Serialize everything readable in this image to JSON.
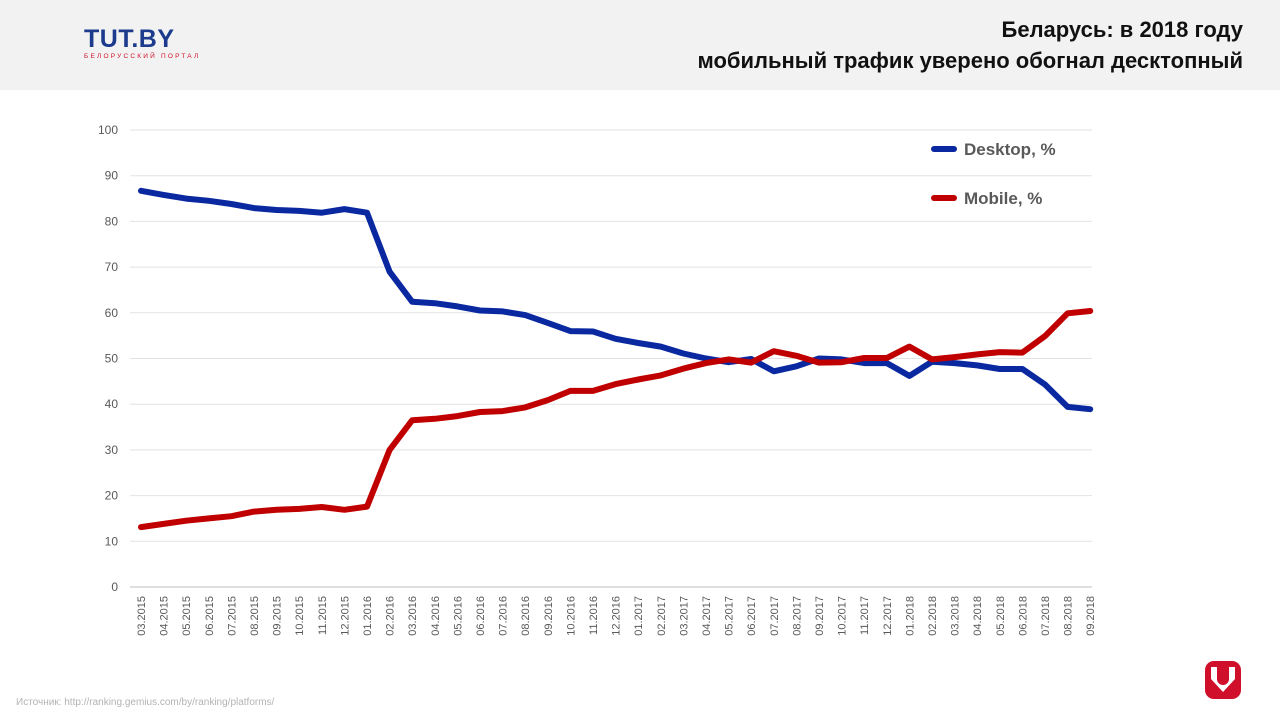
{
  "header": {
    "logo_text": "TUT.BY",
    "logo_subtitle": "БЕЛОРУССКИЙ ПОРТАЛ",
    "title_line1": "Беларусь: в 2018 году",
    "title_line2": "мобильный трафик уверено обогнал десктопный"
  },
  "footer": {
    "source": "Источник: http://ranking.gemius.com/by/ranking/platforms/"
  },
  "colors": {
    "desktop": "#0a28a0",
    "mobile": "#c00000",
    "brand_red": "#d0102a",
    "brand_blue": "#1c3b8c"
  },
  "chart_data": {
    "type": "line",
    "title": "",
    "xlabel": "",
    "ylabel": "",
    "ylim": [
      0,
      100
    ],
    "yticks": [
      0,
      10,
      20,
      30,
      40,
      50,
      60,
      70,
      80,
      90,
      100
    ],
    "grid": true,
    "legend_position": "top-right",
    "x": [
      "03.2015",
      "04.2015",
      "05.2015",
      "06.2015",
      "07.2015",
      "08.2015",
      "09.2015",
      "10.2015",
      "11.2015",
      "12.2015",
      "01.2016",
      "02.2016",
      "03.2016",
      "04.2016",
      "05.2016",
      "06.2016",
      "07.2016",
      "08.2016",
      "09.2016",
      "10.2016",
      "11.2016",
      "12.2016",
      "01.2017",
      "02.2017",
      "03.2017",
      "04.2017",
      "05.2017",
      "06.2017",
      "07.2017",
      "08.2017",
      "09.2017",
      "10.2017",
      "11.2017",
      "12.2017",
      "01.2018",
      "02.2018",
      "03.2018",
      "04.2018",
      "05.2018",
      "06.2018",
      "07.2018",
      "08.2018",
      "09.2018"
    ],
    "series": [
      {
        "name": "Desktop, %",
        "color": "#0a28a0",
        "values": [
          86.7,
          85.8,
          85.0,
          84.5,
          83.8,
          82.9,
          82.5,
          82.3,
          81.9,
          82.7,
          81.9,
          69.0,
          62.4,
          62.1,
          61.4,
          60.5,
          60.3,
          59.5,
          57.8,
          56.0,
          55.9,
          54.3,
          53.4,
          52.6,
          51.1,
          50.0,
          49.2,
          49.9,
          47.2,
          48.3,
          50.0,
          49.8,
          49.0,
          49.0,
          46.2,
          49.3,
          49.0,
          48.5,
          47.7,
          47.7,
          44.3,
          39.4,
          38.9
        ]
      },
      {
        "name": "Mobile, %",
        "color": "#c00000",
        "values": [
          13.1,
          13.8,
          14.5,
          15.0,
          15.5,
          16.5,
          16.9,
          17.1,
          17.5,
          16.9,
          17.6,
          30.0,
          36.5,
          36.8,
          37.4,
          38.3,
          38.5,
          39.3,
          40.9,
          42.9,
          42.9,
          44.4,
          45.4,
          46.3,
          47.8,
          49.0,
          49.8,
          49.1,
          51.6,
          50.6,
          49.1,
          49.2,
          50.1,
          50.1,
          52.6,
          49.8,
          50.3,
          50.9,
          51.4,
          51.3,
          54.9,
          59.9,
          60.4
        ]
      }
    ]
  }
}
